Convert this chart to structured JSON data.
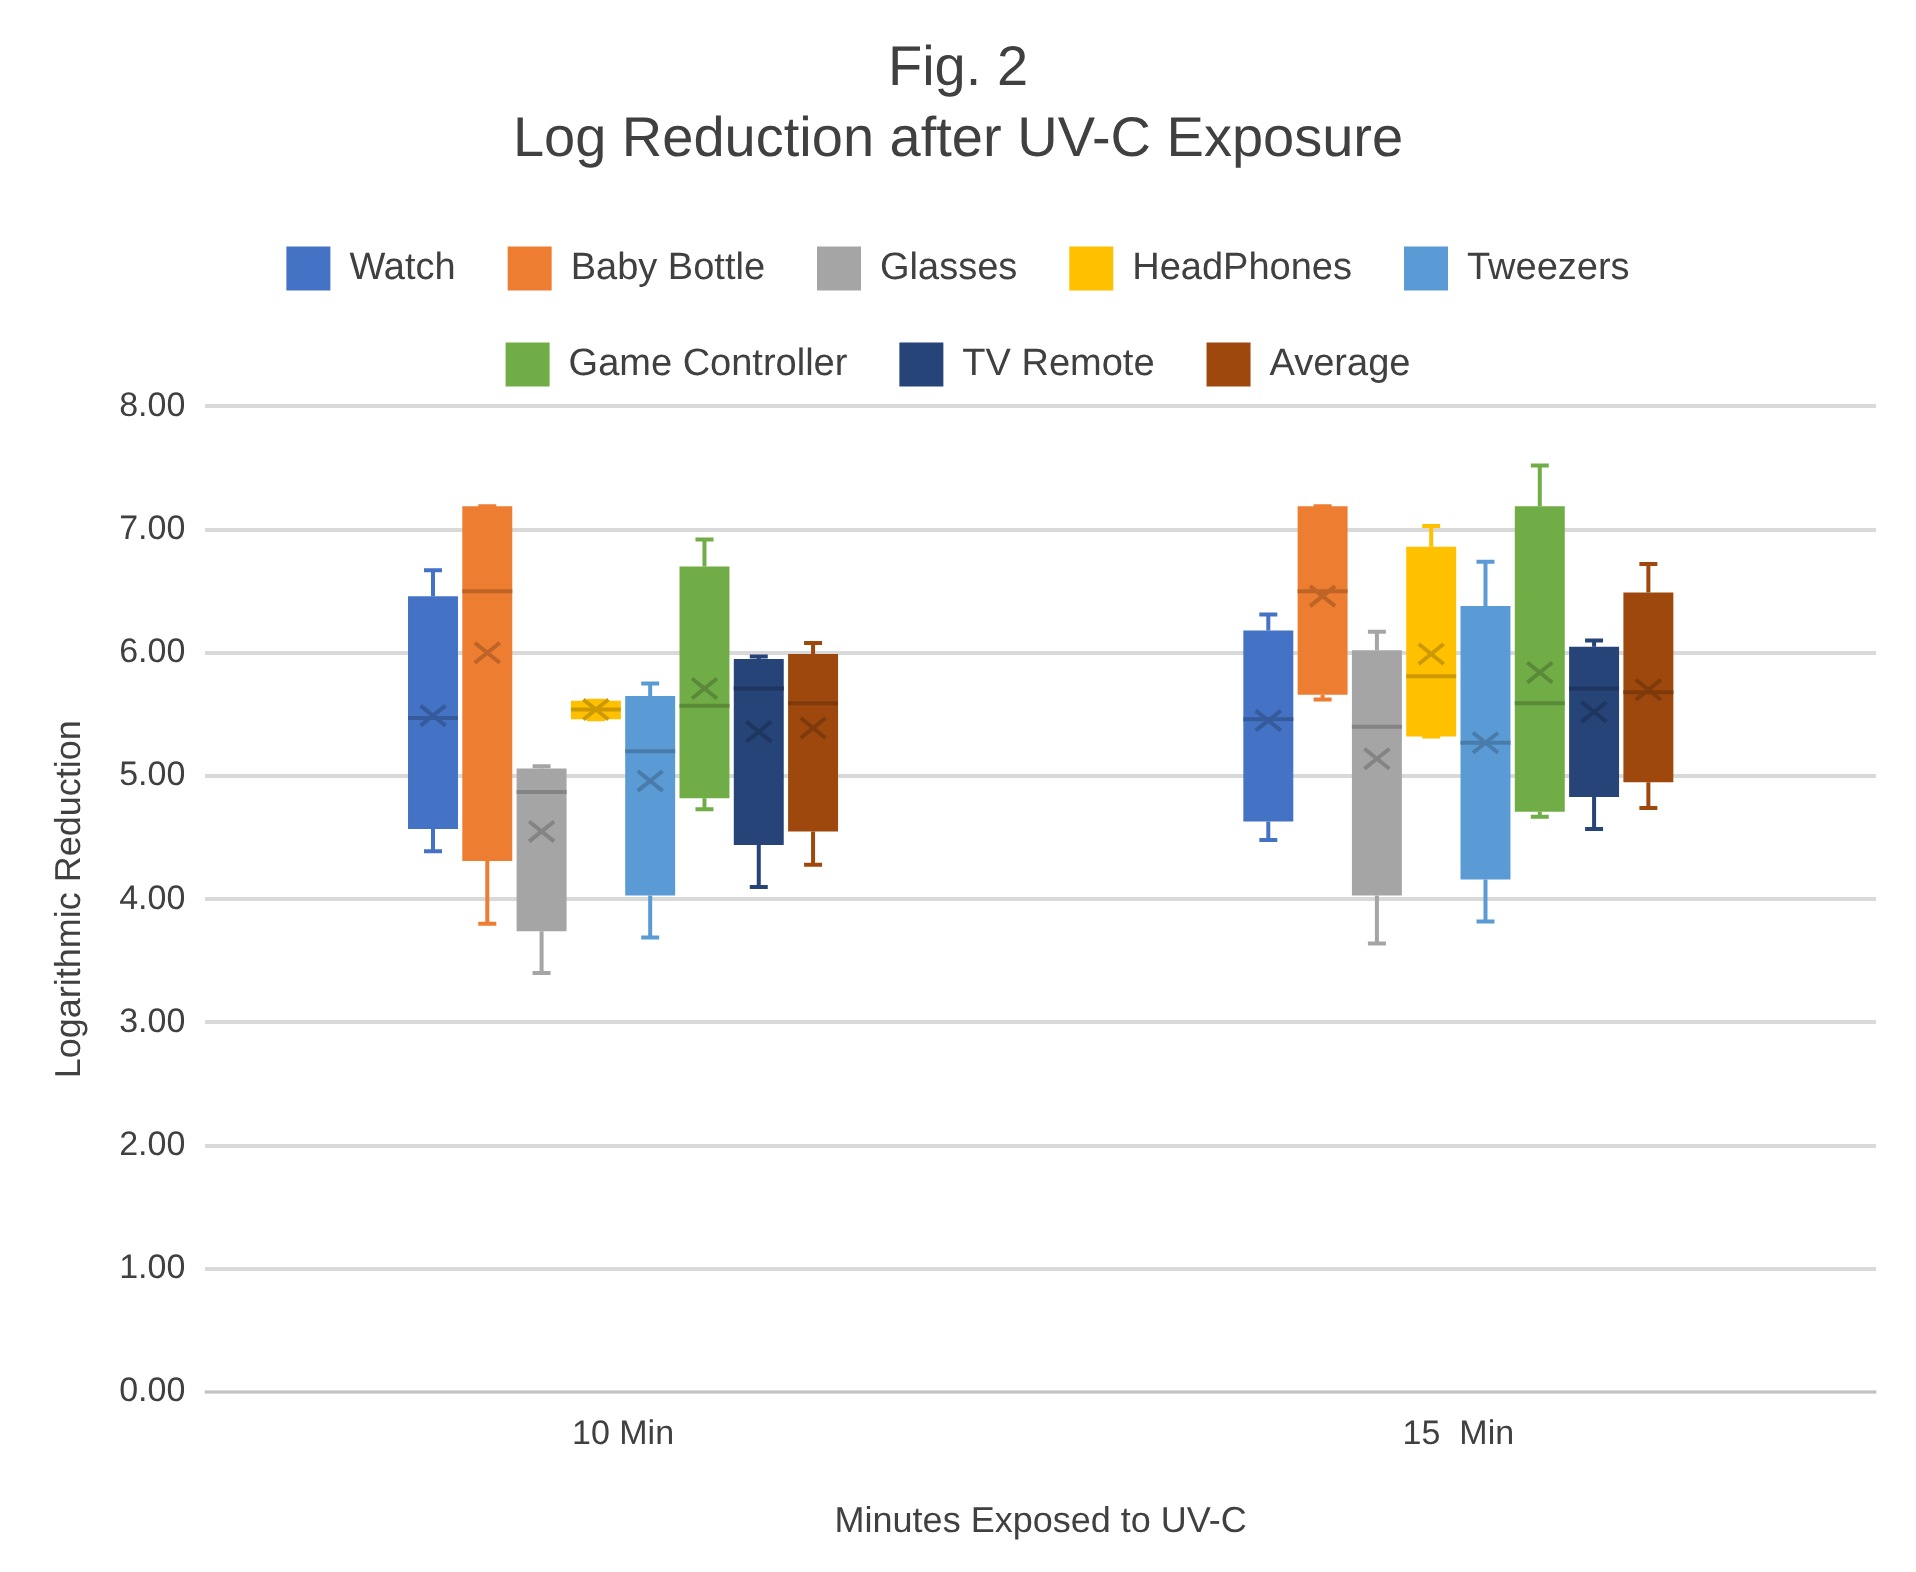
{
  "chart_data": {
    "type": "box",
    "title": "Fig. 2",
    "subtitle": "Log Reduction after UV-C Exposure",
    "xlabel": "Minutes Exposed to UV-C",
    "ylabel": "Logarithmic Reduction",
    "categories": [
      "10 Min",
      "15  Min"
    ],
    "ylim": [
      0,
      8
    ],
    "yticks": [
      {
        "value": 0,
        "label": "0.00"
      },
      {
        "value": 1,
        "label": "1.00"
      },
      {
        "value": 2,
        "label": "2.00"
      },
      {
        "value": 3,
        "label": "3.00"
      },
      {
        "value": 4,
        "label": "4.00"
      },
      {
        "value": 5,
        "label": "5.00"
      },
      {
        "value": 6,
        "label": "6.00"
      },
      {
        "value": 7,
        "label": "7.00"
      },
      {
        "value": 8,
        "label": "8.00"
      }
    ],
    "grid": "y",
    "legend": "top",
    "series": [
      {
        "name": "Watch",
        "color": "#4472c4",
        "boxes": [
          {
            "low": 4.39,
            "q1": 4.57,
            "median": 5.47,
            "q3": 6.46,
            "high": 6.67,
            "mean": 5.49
          },
          {
            "low": 4.48,
            "q1": 4.63,
            "median": 5.46,
            "q3": 6.18,
            "high": 6.31,
            "mean": 5.45
          }
        ]
      },
      {
        "name": "Baby Bottle",
        "color": "#ed7d31",
        "boxes": [
          {
            "low": 3.8,
            "q1": 4.31,
            "median": 6.5,
            "q3": 7.19,
            "high": 7.19,
            "mean": 6.0
          },
          {
            "low": 5.62,
            "q1": 5.66,
            "median": 6.5,
            "q3": 7.19,
            "high": 7.19,
            "mean": 6.46
          }
        ]
      },
      {
        "name": "Glasses",
        "color": "#a5a5a5",
        "boxes": [
          {
            "low": 3.4,
            "q1": 3.74,
            "median": 4.87,
            "q3": 5.06,
            "high": 5.08,
            "mean": 4.55
          },
          {
            "low": 3.64,
            "q1": 4.03,
            "median": 5.4,
            "q3": 6.02,
            "high": 6.17,
            "mean": 5.14
          }
        ]
      },
      {
        "name": "HeadPhones",
        "color": "#ffc000",
        "boxes": [
          {
            "low": 5.46,
            "q1": 5.46,
            "median": 5.54,
            "q3": 5.61,
            "high": 5.61,
            "mean": 5.54
          },
          {
            "low": 5.32,
            "q1": 5.32,
            "median": 5.81,
            "q3": 6.86,
            "high": 7.03,
            "mean": 5.99
          }
        ]
      },
      {
        "name": "Tweezers",
        "color": "#5b9bd5",
        "boxes": [
          {
            "low": 3.69,
            "q1": 4.03,
            "median": 5.2,
            "q3": 5.65,
            "high": 5.75,
            "mean": 4.96
          },
          {
            "low": 3.82,
            "q1": 4.16,
            "median": 5.27,
            "q3": 6.38,
            "high": 6.74,
            "mean": 5.27
          }
        ]
      },
      {
        "name": "Game Controller",
        "color": "#70ad47",
        "boxes": [
          {
            "low": 4.73,
            "q1": 4.82,
            "median": 5.57,
            "q3": 6.7,
            "high": 6.92,
            "mean": 5.71
          },
          {
            "low": 4.67,
            "q1": 4.71,
            "median": 5.59,
            "q3": 7.19,
            "high": 7.52,
            "mean": 5.84
          }
        ]
      },
      {
        "name": "TV Remote",
        "color": "#264478",
        "boxes": [
          {
            "low": 4.1,
            "q1": 4.44,
            "median": 5.71,
            "q3": 5.95,
            "high": 5.97,
            "mean": 5.36
          },
          {
            "low": 4.57,
            "q1": 4.83,
            "median": 5.71,
            "q3": 6.05,
            "high": 6.1,
            "mean": 5.52
          }
        ]
      },
      {
        "name": "Average",
        "color": "#9e480e",
        "boxes": [
          {
            "low": 4.28,
            "q1": 4.55,
            "median": 5.59,
            "q3": 5.99,
            "high": 6.08,
            "mean": 5.39
          },
          {
            "low": 4.74,
            "q1": 4.95,
            "median": 5.68,
            "q3": 6.49,
            "high": 6.72,
            "mean": 5.7
          }
        ]
      }
    ]
  }
}
